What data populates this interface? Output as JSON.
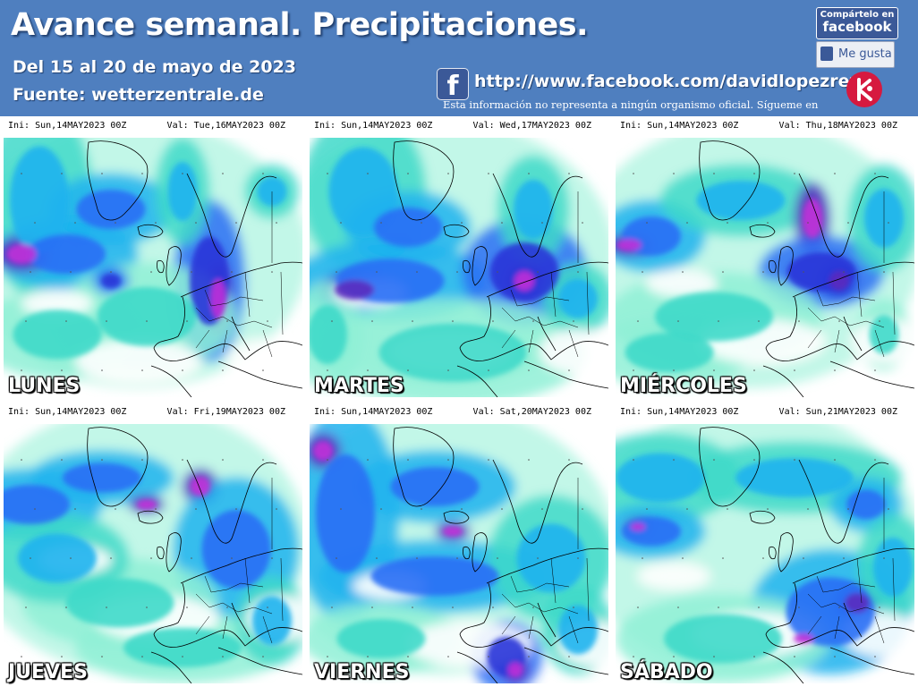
{
  "header": {
    "title": "Avance semanal. Precipitaciones.",
    "date_range": "Del 15 al 20 de mayo de 2023",
    "source": "Fuente: wetterzentrale.de",
    "share_line1": "Compártelo en",
    "share_line2": "facebook",
    "like_label": "Me gusta",
    "facebook_url": "http://www.facebook.com/davidlopezrey",
    "disclaimer": "Esta información no representa a ningún organismo oficial. Sígueme en",
    "colors": {
      "header_bg": "#4f7fbf",
      "facebook_blue": "#3b5998",
      "logo_red": "#d6193f"
    }
  },
  "panels": [
    {
      "ini": "Ini: Sun,14MAY2023  00Z",
      "val": "Val: Tue,16MAY2023  00Z",
      "day": "LUNES"
    },
    {
      "ini": "Ini: Sun,14MAY2023  00Z",
      "val": "Val: Wed,17MAY2023  00Z",
      "day": "MARTES"
    },
    {
      "ini": "Ini: Sun,14MAY2023  00Z",
      "val": "Val: Thu,18MAY2023  00Z",
      "day": "MIÉRCOLES"
    },
    {
      "ini": "Ini: Sun,14MAY2023  00Z",
      "val": "Val: Fri,19MAY2023  00Z",
      "day": "JUEVES"
    },
    {
      "ini": "Ini: Sun,14MAY2023  00Z",
      "val": "Val: Sat,20MAY2023  00Z",
      "day": "VIERNES"
    },
    {
      "ini": "Ini: Sun,14MAY2023  00Z",
      "val": "Val: Sun,21MAY2023  00Z",
      "day": "SÁBADO"
    }
  ],
  "precip_colors": [
    "#ffffff",
    "#8ff0d6",
    "#3fd9c9",
    "#1fb3ee",
    "#2a6ef5",
    "#2735d8",
    "#5b2bbf",
    "#c030d8"
  ]
}
